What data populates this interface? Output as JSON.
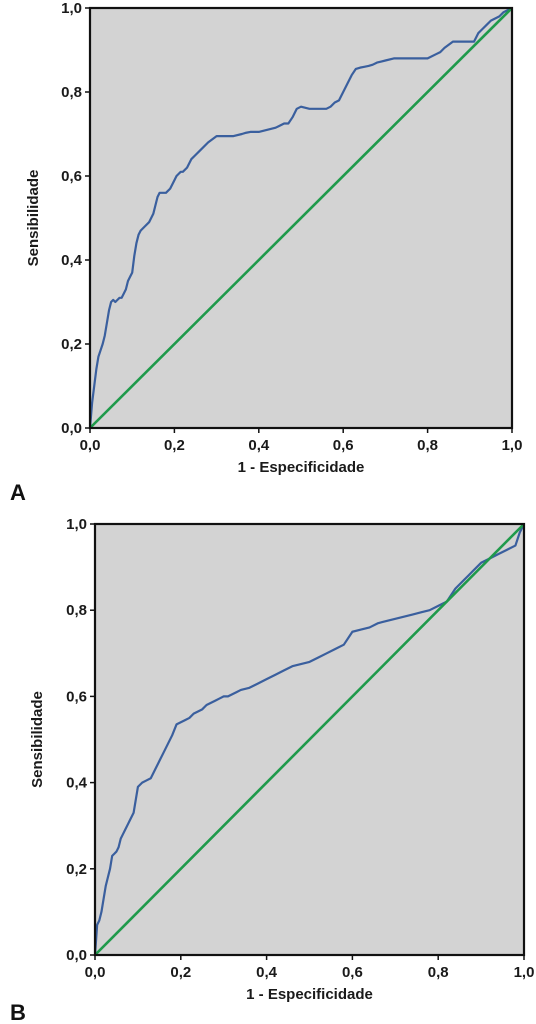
{
  "colors": {
    "plot_background": "#d3d3d3",
    "roc_curve": "#3a5f9e",
    "reference_line": "#1f9a4b",
    "frame": "#111111"
  },
  "chart_data": [
    {
      "panel_label": "A",
      "type": "line",
      "xlabel": "1 - Especificidade",
      "ylabel": "Sensibilidade",
      "xlim": [
        0,
        1
      ],
      "ylim": [
        0,
        1
      ],
      "grid": false,
      "x_tick_labels": [
        "0,0",
        "0,2",
        "0,4",
        "0,6",
        "0,8",
        "1,0"
      ],
      "y_tick_labels": [
        "0,0",
        "0,2",
        "0,4",
        "0,6",
        "0,8",
        "1,0"
      ],
      "series": [
        {
          "role": "roc",
          "x": [
            0,
            0.005,
            0.01,
            0.015,
            0.02,
            0.025,
            0.03,
            0.035,
            0.04,
            0.045,
            0.05,
            0.055,
            0.06,
            0.065,
            0.07,
            0.075,
            0.08,
            0.085,
            0.09,
            0.095,
            0.1,
            0.105,
            0.11,
            0.115,
            0.12,
            0.125,
            0.13,
            0.14,
            0.145,
            0.15,
            0.155,
            0.16,
            0.165,
            0.17,
            0.175,
            0.18,
            0.19,
            0.2,
            0.205,
            0.21,
            0.215,
            0.22,
            0.23,
            0.24,
            0.25,
            0.26,
            0.28,
            0.3,
            0.32,
            0.33,
            0.34,
            0.36,
            0.37,
            0.38,
            0.4,
            0.42,
            0.44,
            0.45,
            0.46,
            0.47,
            0.48,
            0.49,
            0.5,
            0.52,
            0.54,
            0.55,
            0.56,
            0.57,
            0.58,
            0.59,
            0.6,
            0.61,
            0.62,
            0.63,
            0.64,
            0.65,
            0.66,
            0.67,
            0.68,
            0.7,
            0.72,
            0.74,
            0.76,
            0.78,
            0.8,
            0.82,
            0.83,
            0.84,
            0.86,
            0.88,
            0.9,
            0.91,
            0.92,
            0.93,
            0.94,
            0.95,
            0.96,
            0.97,
            0.98,
            0.99,
            1.0
          ],
          "values": [
            0,
            0.06,
            0.1,
            0.14,
            0.17,
            0.185,
            0.2,
            0.22,
            0.25,
            0.28,
            0.3,
            0.305,
            0.3,
            0.305,
            0.31,
            0.31,
            0.32,
            0.33,
            0.35,
            0.36,
            0.37,
            0.41,
            0.44,
            0.46,
            0.47,
            0.475,
            0.48,
            0.49,
            0.5,
            0.51,
            0.53,
            0.55,
            0.56,
            0.56,
            0.56,
            0.56,
            0.57,
            0.59,
            0.6,
            0.605,
            0.61,
            0.61,
            0.62,
            0.64,
            0.65,
            0.66,
            0.68,
            0.695,
            0.695,
            0.695,
            0.695,
            0.7,
            0.703,
            0.705,
            0.705,
            0.71,
            0.715,
            0.72,
            0.725,
            0.725,
            0.74,
            0.76,
            0.765,
            0.76,
            0.76,
            0.76,
            0.76,
            0.765,
            0.775,
            0.78,
            0.8,
            0.82,
            0.84,
            0.855,
            0.858,
            0.86,
            0.862,
            0.865,
            0.87,
            0.875,
            0.88,
            0.88,
            0.88,
            0.88,
            0.88,
            0.89,
            0.895,
            0.905,
            0.92,
            0.92,
            0.92,
            0.92,
            0.94,
            0.95,
            0.96,
            0.97,
            0.975,
            0.98,
            0.99,
            0.995,
            1.0
          ]
        },
        {
          "role": "reference",
          "x": [
            0,
            1
          ],
          "values": [
            0,
            1
          ]
        }
      ]
    },
    {
      "panel_label": "B",
      "type": "line",
      "xlabel": "1 - Especificidade",
      "ylabel": "Sensibilidade",
      "xlim": [
        0,
        1
      ],
      "ylim": [
        0,
        1
      ],
      "grid": false,
      "x_tick_labels": [
        "0,0",
        "0,2",
        "0,4",
        "0,6",
        "0,8",
        "1,0"
      ],
      "y_tick_labels": [
        "0,0",
        "0,2",
        "0,4",
        "0,6",
        "0,8",
        "1,0"
      ],
      "series": [
        {
          "role": "roc",
          "x": [
            0,
            0.005,
            0.01,
            0.015,
            0.02,
            0.025,
            0.03,
            0.035,
            0.04,
            0.045,
            0.05,
            0.055,
            0.06,
            0.065,
            0.07,
            0.08,
            0.09,
            0.1,
            0.11,
            0.12,
            0.13,
            0.14,
            0.15,
            0.16,
            0.17,
            0.18,
            0.19,
            0.2,
            0.21,
            0.22,
            0.23,
            0.24,
            0.25,
            0.26,
            0.27,
            0.28,
            0.29,
            0.3,
            0.31,
            0.32,
            0.33,
            0.34,
            0.36,
            0.38,
            0.4,
            0.42,
            0.44,
            0.46,
            0.48,
            0.5,
            0.52,
            0.54,
            0.56,
            0.58,
            0.6,
            0.62,
            0.64,
            0.66,
            0.68,
            0.7,
            0.72,
            0.74,
            0.76,
            0.78,
            0.8,
            0.82,
            0.84,
            0.86,
            0.87,
            0.88,
            0.9,
            0.92,
            0.94,
            0.96,
            0.98,
            0.99,
            1.0
          ],
          "values": [
            0,
            0.07,
            0.08,
            0.1,
            0.13,
            0.16,
            0.18,
            0.2,
            0.23,
            0.235,
            0.24,
            0.25,
            0.27,
            0.28,
            0.29,
            0.31,
            0.33,
            0.39,
            0.4,
            0.405,
            0.41,
            0.43,
            0.45,
            0.47,
            0.49,
            0.51,
            0.535,
            0.54,
            0.545,
            0.55,
            0.56,
            0.565,
            0.57,
            0.58,
            0.585,
            0.59,
            0.595,
            0.6,
            0.6,
            0.605,
            0.61,
            0.615,
            0.62,
            0.63,
            0.64,
            0.65,
            0.66,
            0.67,
            0.675,
            0.68,
            0.69,
            0.7,
            0.71,
            0.72,
            0.75,
            0.755,
            0.76,
            0.77,
            0.775,
            0.78,
            0.785,
            0.79,
            0.795,
            0.8,
            0.81,
            0.82,
            0.85,
            0.87,
            0.88,
            0.89,
            0.91,
            0.92,
            0.93,
            0.94,
            0.95,
            0.98,
            1.0
          ]
        },
        {
          "role": "reference",
          "x": [
            0,
            1
          ],
          "values": [
            0,
            1
          ]
        }
      ]
    }
  ]
}
